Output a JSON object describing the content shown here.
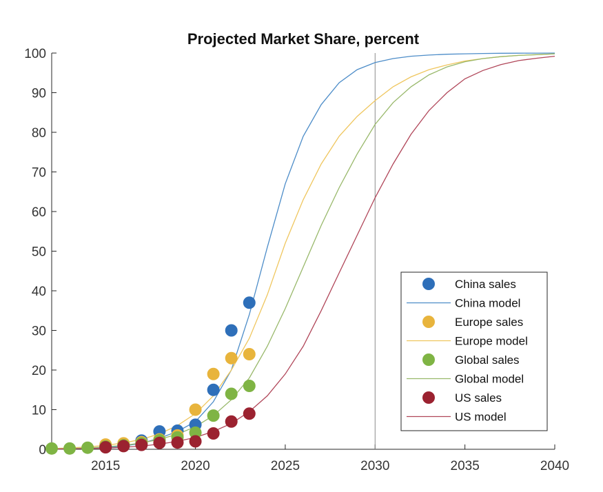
{
  "chart_data": {
    "type": "line",
    "title": "Projected Market Share, percent",
    "xlabel": "",
    "ylabel": "",
    "xlim": [
      2012,
      2040
    ],
    "ylim": [
      0,
      100
    ],
    "x_ticks": [
      2015,
      2020,
      2025,
      2030,
      2035,
      2040
    ],
    "y_ticks": [
      0,
      10,
      20,
      30,
      40,
      50,
      60,
      70,
      80,
      90,
      100
    ],
    "grid": false,
    "vertical_reference_line": 2030,
    "legend": {
      "position": "lower-right",
      "entries": [
        "China sales",
        "China model",
        "Europe sales",
        "Europe model",
        "Global sales",
        "Global model",
        "US sales",
        "US model"
      ]
    },
    "series": [
      {
        "name": "China sales",
        "kind": "scatter",
        "color": "#2e6fb9",
        "x": [
          2015,
          2016,
          2017,
          2018,
          2019,
          2020,
          2021,
          2022,
          2023
        ],
        "y": [
          0.8,
          1.2,
          2.2,
          4.5,
          4.7,
          6.2,
          15,
          30,
          37
        ]
      },
      {
        "name": "China model",
        "kind": "line",
        "color": "#4c8cc8",
        "x": [
          2012,
          2013,
          2014,
          2015,
          2016,
          2017,
          2018,
          2019,
          2020,
          2021,
          2022,
          2023,
          2024,
          2025,
          2026,
          2027,
          2028,
          2029,
          2030,
          2031,
          2032,
          2033,
          2034,
          2035,
          2036,
          2037,
          2038,
          2039,
          2040
        ],
        "y": [
          0.05,
          0.1,
          0.2,
          0.4,
          0.8,
          1.5,
          2.8,
          4.5,
          7,
          12,
          20,
          34,
          51,
          67,
          79,
          87,
          92.5,
          95.8,
          97.6,
          98.6,
          99.2,
          99.5,
          99.7,
          99.8,
          99.9,
          99.95,
          99.97,
          99.98,
          100
        ]
      },
      {
        "name": "Europe sales",
        "kind": "scatter",
        "color": "#e8b43c",
        "x": [
          2015,
          2016,
          2017,
          2018,
          2019,
          2020,
          2021,
          2022,
          2023
        ],
        "y": [
          1.2,
          1.5,
          1.8,
          2.5,
          3.5,
          10,
          19,
          23,
          24
        ]
      },
      {
        "name": "Europe model",
        "kind": "line",
        "color": "#efc65e",
        "x": [
          2012,
          2013,
          2014,
          2015,
          2016,
          2017,
          2018,
          2019,
          2020,
          2021,
          2022,
          2023,
          2024,
          2025,
          2026,
          2027,
          2028,
          2029,
          2030,
          2031,
          2032,
          2033,
          2034,
          2035,
          2036,
          2037,
          2038,
          2039,
          2040
        ],
        "y": [
          0.2,
          0.35,
          0.6,
          1,
          1.6,
          2.5,
          3.9,
          6,
          9,
          13.5,
          20,
          28,
          39,
          52,
          63,
          72,
          79,
          84,
          88,
          91.5,
          94,
          95.8,
          97,
          98,
          98.6,
          99.1,
          99.4,
          99.6,
          99.8
        ]
      },
      {
        "name": "Global sales",
        "kind": "scatter",
        "color": "#7fb444",
        "x": [
          2012,
          2013,
          2014,
          2015,
          2016,
          2017,
          2018,
          2019,
          2020,
          2021,
          2022,
          2023
        ],
        "y": [
          0.2,
          0.2,
          0.4,
          0.7,
          1.0,
          1.5,
          2.3,
          3.0,
          4.2,
          8.5,
          14,
          16
        ]
      },
      {
        "name": "Global model",
        "kind": "line",
        "color": "#98b86a",
        "x": [
          2012,
          2013,
          2014,
          2015,
          2016,
          2017,
          2018,
          2019,
          2020,
          2021,
          2022,
          2023,
          2024,
          2025,
          2026,
          2027,
          2028,
          2029,
          2030,
          2031,
          2032,
          2033,
          2034,
          2035,
          2036,
          2037,
          2038,
          2039,
          2040
        ],
        "y": [
          0.1,
          0.2,
          0.35,
          0.6,
          1,
          1.6,
          2.5,
          3.8,
          5.7,
          8.5,
          12.5,
          18,
          26,
          35.5,
          46,
          56.5,
          66,
          74.5,
          82,
          87.5,
          91.5,
          94.5,
          96.5,
          97.8,
          98.6,
          99.1,
          99.4,
          99.6,
          99.8
        ]
      },
      {
        "name": "US sales",
        "kind": "scatter",
        "color": "#9b2230",
        "x": [
          2015,
          2016,
          2017,
          2018,
          2019,
          2020,
          2021,
          2022,
          2023
        ],
        "y": [
          0.5,
          0.8,
          1.1,
          1.6,
          1.7,
          2.0,
          4.0,
          7.0,
          9.0
        ]
      },
      {
        "name": "US model",
        "kind": "line",
        "color": "#b04558",
        "x": [
          2012,
          2013,
          2014,
          2015,
          2016,
          2017,
          2018,
          2019,
          2020,
          2021,
          2022,
          2023,
          2024,
          2025,
          2026,
          2027,
          2028,
          2029,
          2030,
          2031,
          2032,
          2033,
          2034,
          2035,
          2036,
          2037,
          2038,
          2039,
          2040
        ],
        "y": [
          0.05,
          0.1,
          0.2,
          0.3,
          0.5,
          0.8,
          1.3,
          2,
          3,
          4.5,
          6.5,
          9.5,
          13.5,
          19,
          26,
          35,
          44.5,
          54,
          63.5,
          72,
          79.5,
          85.5,
          90,
          93.5,
          95.6,
          97.1,
          98.1,
          98.7,
          99.2
        ]
      }
    ]
  }
}
